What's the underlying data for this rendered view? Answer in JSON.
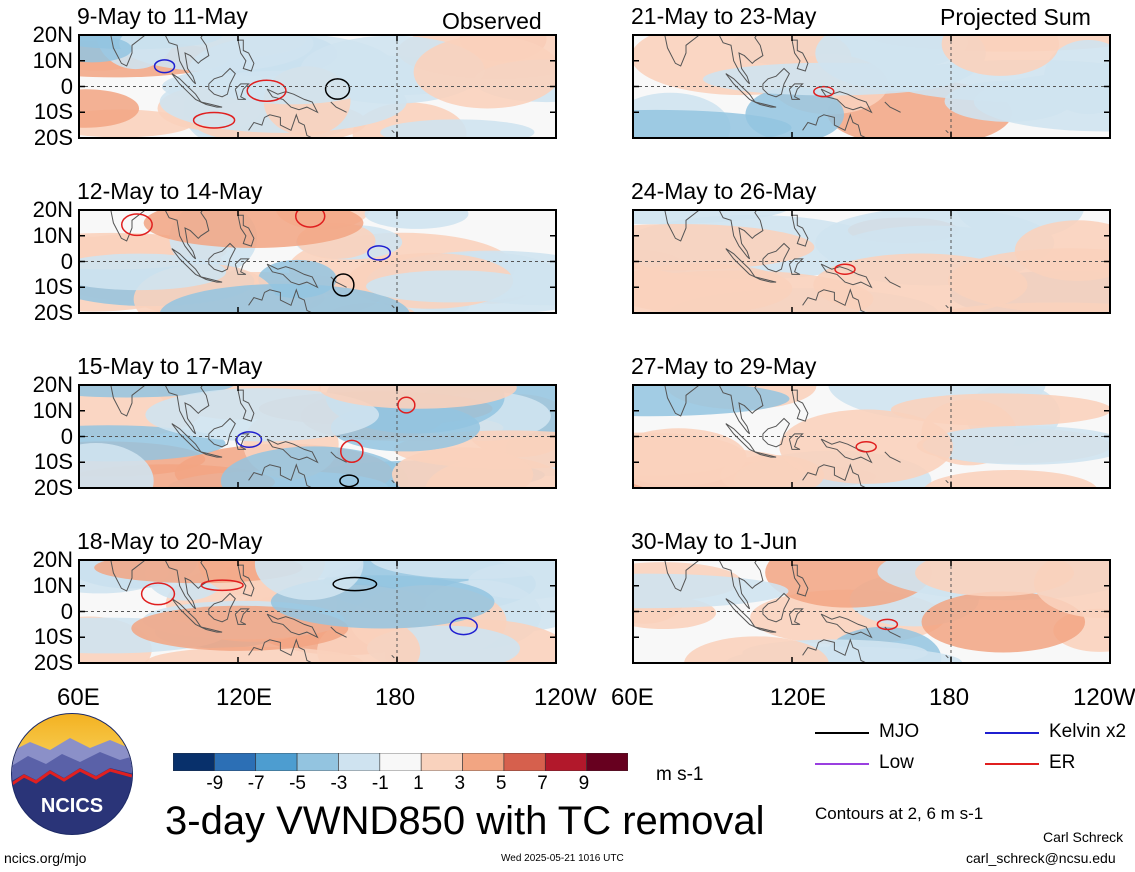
{
  "figure": {
    "title": "3-day VWND850 with TC removal",
    "units": "m s-1",
    "contours_note": "Contours at 2, 6 m s-1",
    "left_header": "Observed",
    "right_header": "Projected Sum",
    "website": "ncics.org/mjo",
    "timestamp": "Wed 2025-05-21 1016 UTC",
    "author": "Carl Schreck",
    "email": "carl_schreck@ncsu.edu",
    "logo_text": "NCICS"
  },
  "colors": {
    "neg_strong": "#08306b",
    "pos_strong": "#67001f",
    "mjo": "#000000",
    "kelvin": "#1f1fd0",
    "low": "#9a3fe0",
    "er": "#e01f1f",
    "land_outline": "#555555"
  },
  "chart_data": {
    "type": "heatmap",
    "variable": "VWND850 (3-day mean anomaly, TC removed)",
    "lat_ticks": [
      "20N",
      "10N",
      "0",
      "10S",
      "20S"
    ],
    "lon_ticks": [
      "60E",
      "120E",
      "180",
      "120W"
    ],
    "lat_range": [
      -20,
      20
    ],
    "lon_range": [
      60,
      240
    ],
    "colorbar": {
      "labels": [
        "-9",
        "-7",
        "-5",
        "-3",
        "-1",
        "1",
        "3",
        "5",
        "7",
        "9"
      ],
      "colors": [
        "#08306b",
        "#2c6fb5",
        "#4d9dd0",
        "#93c4e0",
        "#cfe3f0",
        "#f8f8f8",
        "#f9d2bd",
        "#f2a582",
        "#d6604d",
        "#b2182b",
        "#67001f"
      ]
    },
    "legend": [
      {
        "name": "MJO",
        "color": "#000000"
      },
      {
        "name": "Kelvin x2",
        "color": "#1f1fd0"
      },
      {
        "name": "Low",
        "color": "#9a3fe0"
      },
      {
        "name": "ER",
        "color": "#e01f1f"
      }
    ],
    "panels": [
      {
        "title": "9-May to 11-May",
        "group": "Observed"
      },
      {
        "title": "12-May to 14-May",
        "group": "Observed"
      },
      {
        "title": "15-May to 17-May",
        "group": "Observed"
      },
      {
        "title": "18-May to 20-May",
        "group": "Observed"
      },
      {
        "title": "21-May to 23-May",
        "group": "Projected Sum"
      },
      {
        "title": "24-May to 26-May",
        "group": "Projected Sum"
      },
      {
        "title": "27-May to 29-May",
        "group": "Projected Sum"
      },
      {
        "title": "30-May to 1-Jun",
        "group": "Projected Sum"
      }
    ]
  }
}
